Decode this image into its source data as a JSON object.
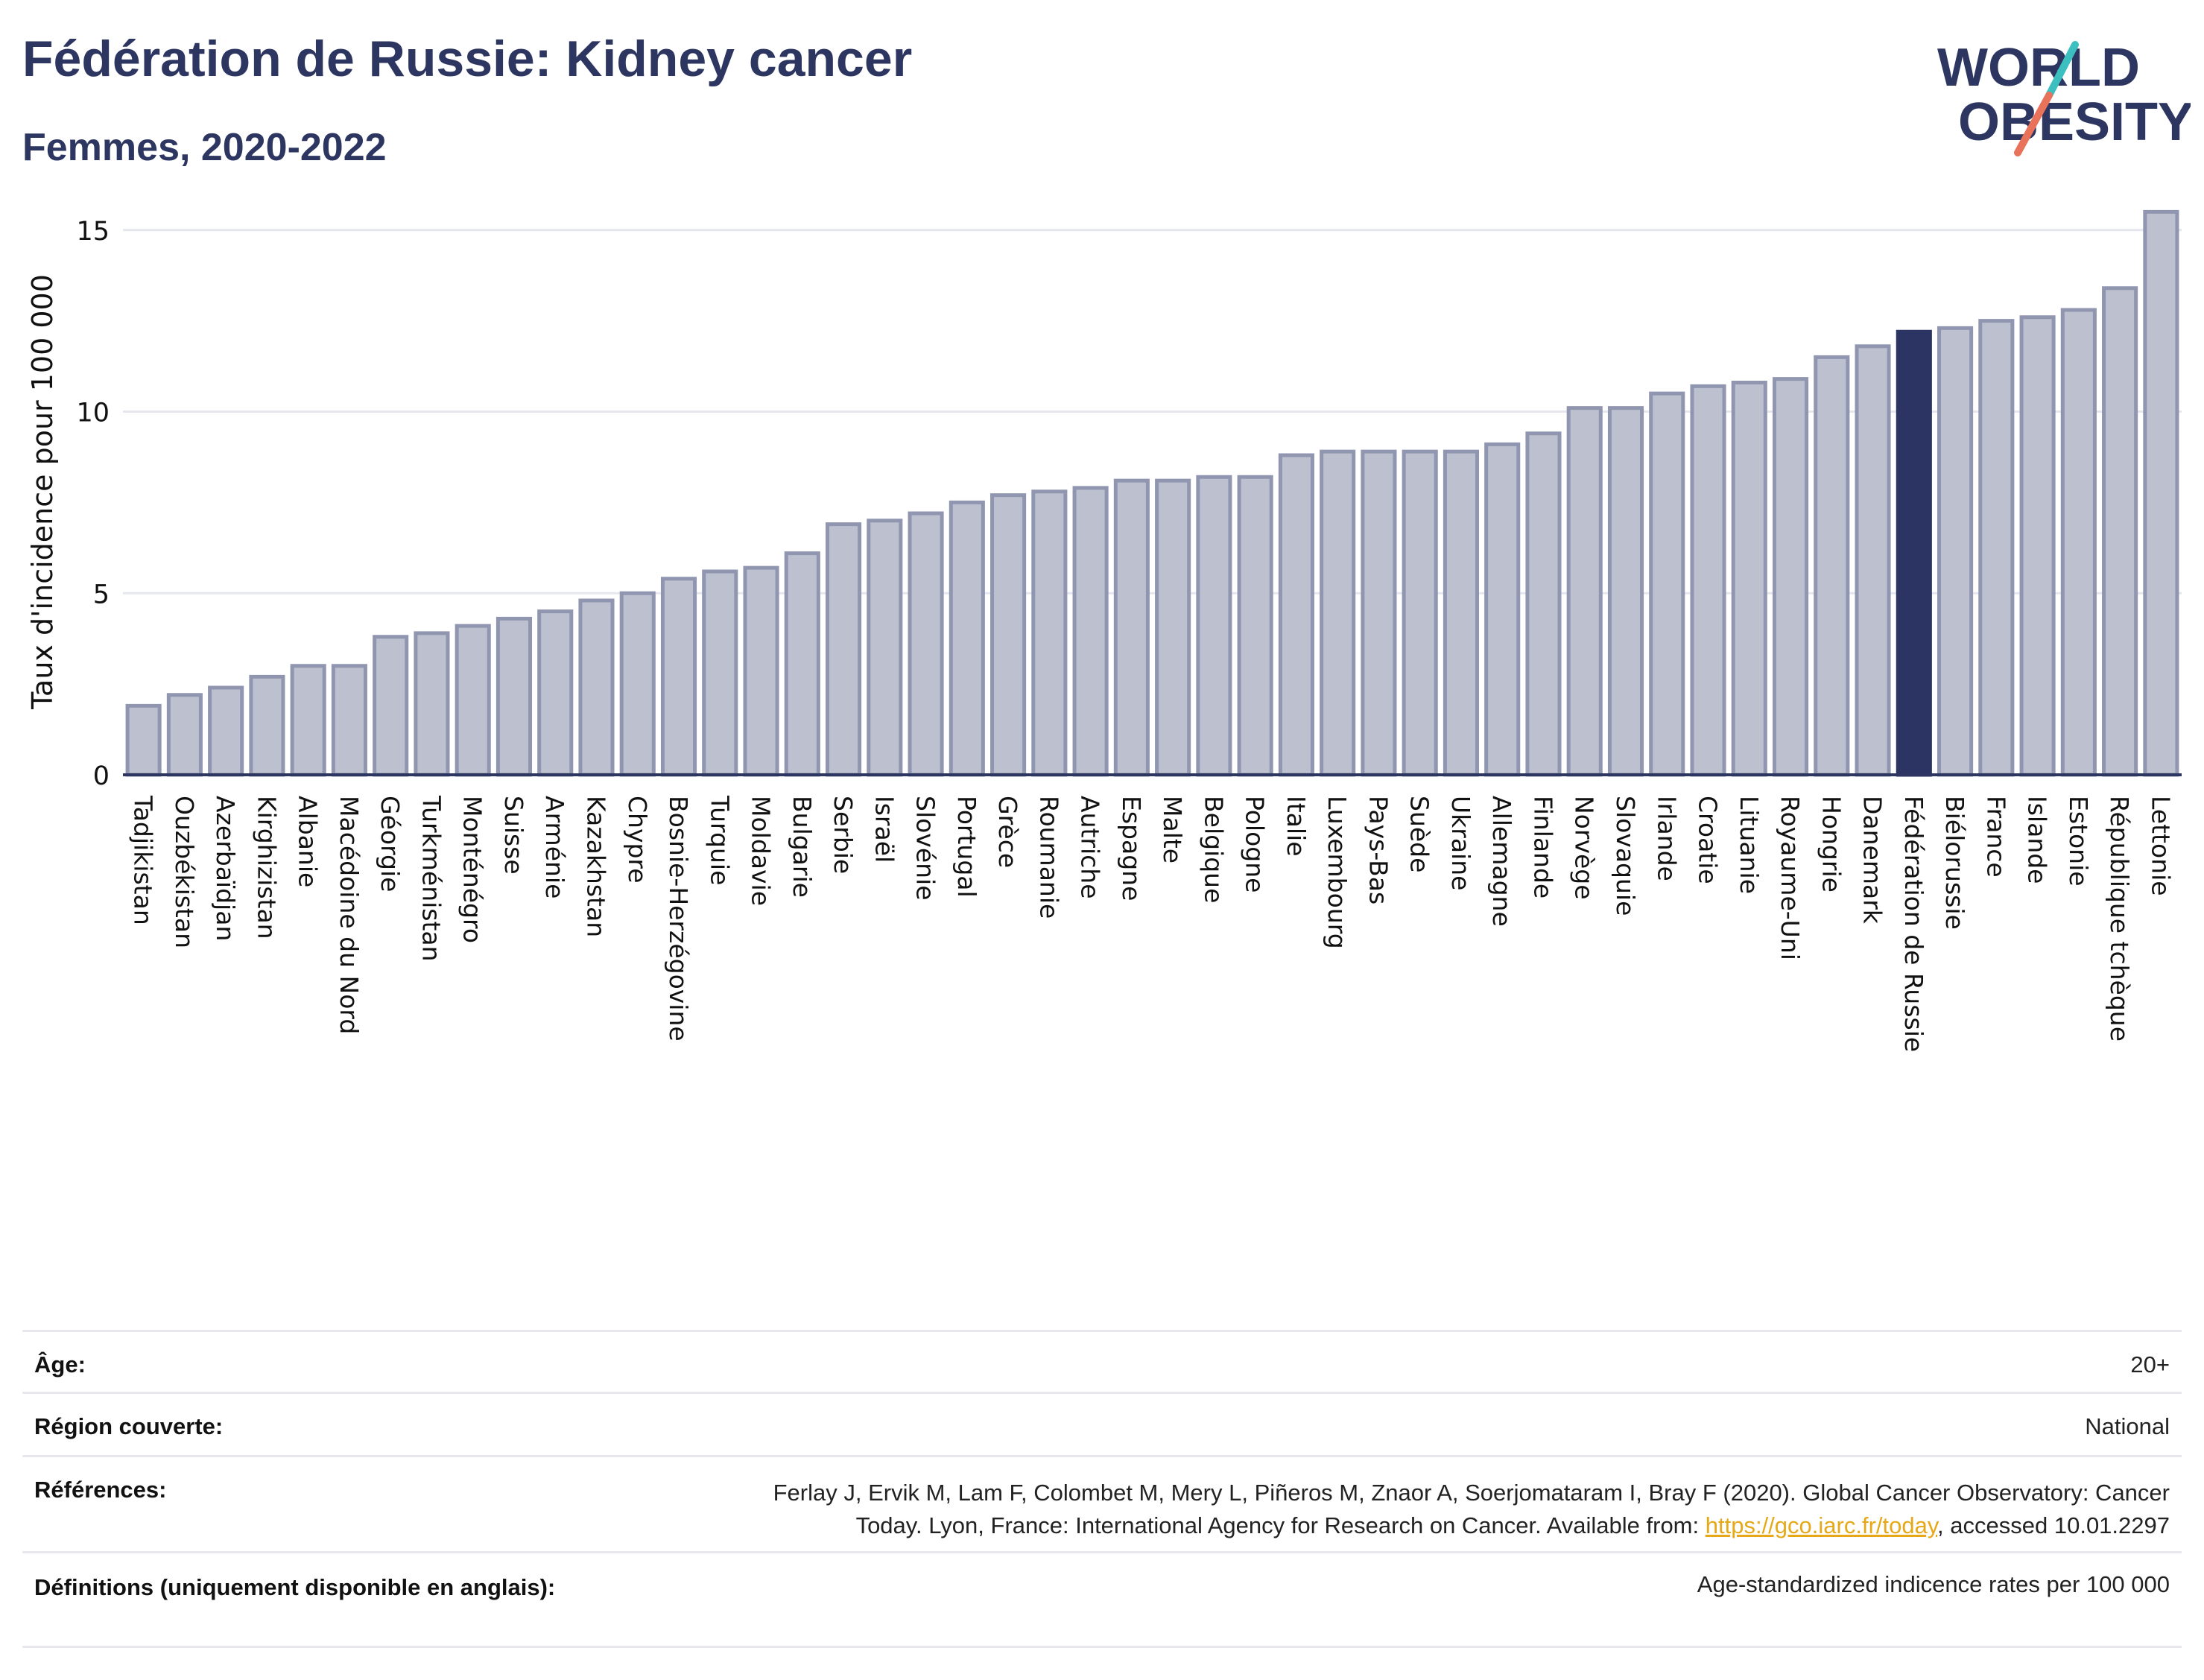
{
  "header": {
    "title": "Fédération de Russie: Kidney cancer",
    "subtitle": "Femmes, 2020-2022"
  },
  "logo": {
    "line1": "WORLD",
    "line2": "OBESITY",
    "colors": {
      "text": "#2d3561",
      "slash_teal": "#3cbfbf",
      "slash_coral": "#e8735a"
    }
  },
  "colors": {
    "bar": "#bcc0cf",
    "bar_stroke": "#9096b0",
    "highlight": "#2b3463",
    "grid": "#e6e7ee",
    "axis": "#2d3561"
  },
  "chart_data": {
    "type": "bar",
    "title": "Fédération de Russie: Kidney cancer",
    "subtitle": "Femmes, 2020-2022",
    "ylabel": "Taux d'incidence pour 100 000",
    "xlabel": "",
    "ylim": [
      0,
      16
    ],
    "yticks": [
      0,
      5,
      10,
      15
    ],
    "grid": true,
    "highlight": "Fédération de Russie",
    "categories": [
      "Tadjikistan",
      "Ouzbékistan",
      "Azerbaïdjan",
      "Kirghizistan",
      "Albanie",
      "Macédoine du Nord",
      "Géorgie",
      "Turkménistan",
      "Monténégro",
      "Suisse",
      "Arménie",
      "Kazakhstan",
      "Chypre",
      "Bosnie-Herzégovine",
      "Turquie",
      "Moldavie",
      "Bulgarie",
      "Serbie",
      "Israël",
      "Slovénie",
      "Portugal",
      "Grèce",
      "Roumanie",
      "Autriche",
      "Espagne",
      "Malte",
      "Belgique",
      "Pologne",
      "Italie",
      "Luxembourg",
      "Pays-Bas",
      "Suède",
      "Ukraine",
      "Allemagne",
      "Finlande",
      "Norvège",
      "Slovaquie",
      "Irlande",
      "Croatie",
      "Lituanie",
      "Royaume-Uni",
      "Hongrie",
      "Danemark",
      "Fédération de Russie",
      "Biélorussie",
      "France",
      "Islande",
      "Estonie",
      "République tchèque",
      "Lettonie"
    ],
    "values": [
      1.9,
      2.2,
      2.4,
      2.7,
      3.0,
      3.0,
      3.8,
      3.9,
      4.1,
      4.3,
      4.5,
      4.8,
      5.0,
      5.4,
      5.6,
      5.7,
      6.1,
      6.9,
      7.0,
      7.2,
      7.5,
      7.7,
      7.8,
      7.9,
      8.1,
      8.1,
      8.2,
      8.2,
      8.8,
      8.9,
      8.9,
      8.9,
      8.9,
      9.1,
      9.4,
      10.1,
      10.1,
      10.5,
      10.7,
      10.8,
      10.9,
      11.5,
      11.8,
      12.2,
      12.3,
      12.5,
      12.6,
      12.8,
      13.4,
      15.5
    ]
  },
  "meta": [
    {
      "label": "Âge:",
      "value": "20+"
    },
    {
      "label": "Région couverte:",
      "value": "National"
    },
    {
      "label": "Références:",
      "value_line1": "Ferlay J, Ervik M, Lam F, Colombet M, Mery L, Piñeros M, Znaor A, Soerjomataram I, Bray F (2020). Global Cancer Observatory: Cancer",
      "value_line2_pre": "Today. Lyon, France: International Agency for Research on Cancer. Available from: ",
      "link": "https://gco.iarc.fr/today",
      "value_line2_post": ", accessed 10.01.2297"
    },
    {
      "label": "Définitions (uniquement disponible en anglais):",
      "value": "Age-standardized indicence rates per 100 000"
    }
  ]
}
